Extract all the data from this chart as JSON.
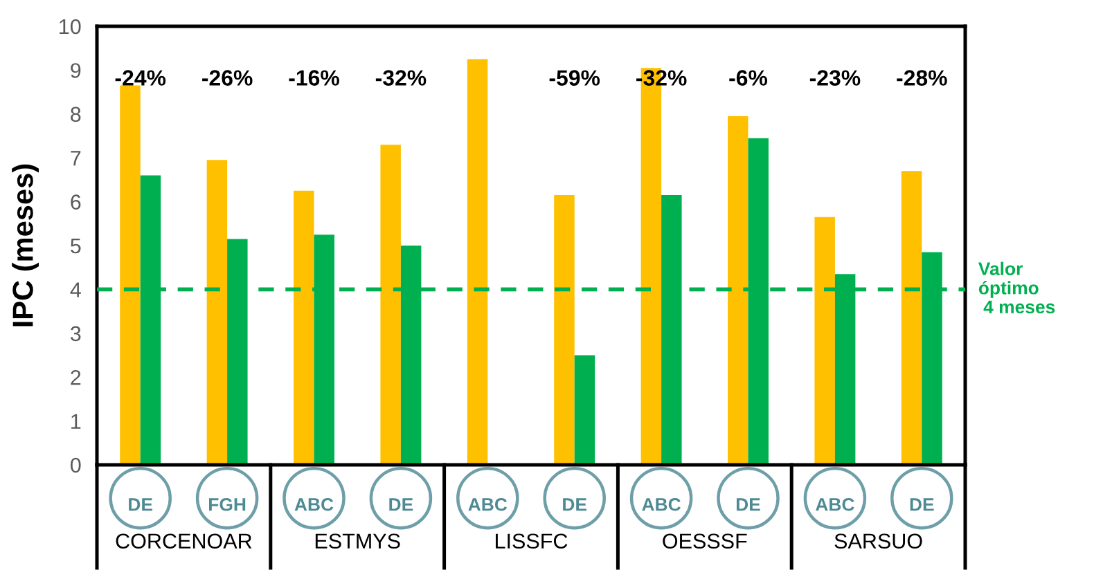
{
  "chart_data": {
    "type": "bar",
    "ylabel": "IPC (meses)",
    "categories": [
      "DE",
      "FGH",
      "ABC",
      "DE",
      "ABC",
      "DE",
      "ABC",
      "DE",
      "ABC",
      "DE"
    ],
    "series": [
      {
        "color": "#ffc000",
        "values": [
          8.65,
          6.95,
          6.25,
          7.3,
          9.25,
          6.15,
          9.05,
          7.95,
          5.65,
          6.7
        ]
      },
      {
        "color": "#00b050",
        "values": [
          6.6,
          5.15,
          5.25,
          5.0,
          null,
          2.5,
          6.15,
          7.45,
          4.35,
          4.85
        ]
      }
    ],
    "ylim": [
      0,
      10
    ],
    "yticks": [
      0,
      1,
      2,
      3,
      4,
      5,
      6,
      7,
      8,
      9,
      10
    ],
    "ref_lines": [
      {
        "axis": "y",
        "value": 4,
        "label": "Valor\nóptimo\n 4 meses",
        "color": "#00b050",
        "line_style": "dashed"
      }
    ],
    "annotations": [
      "-24%",
      "-26%",
      "-16%",
      "-32%",
      "-59%",
      "-32%",
      "-6%",
      "-23%",
      "-28%",
      "CORCENOAR",
      "ESTMYS",
      "LISSFC",
      "OESSSF",
      "SARSUO"
    ]
  }
}
